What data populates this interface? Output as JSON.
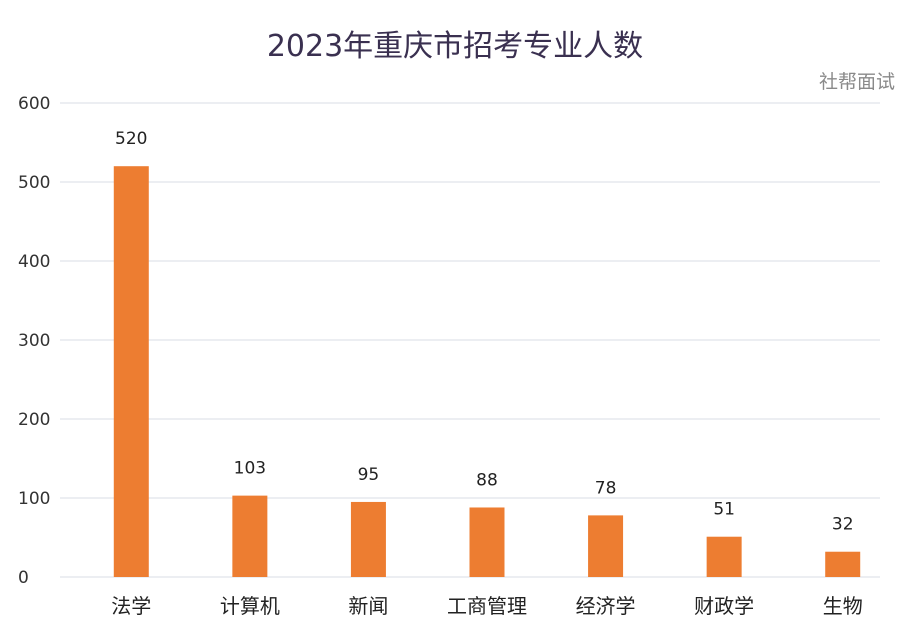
{
  "chart_data": {
    "type": "bar",
    "title": "2023年重庆市招考专业人数",
    "categories": [
      "法学",
      "计算机",
      "新闻",
      "工商管理",
      "经济学",
      "财政学",
      "生物"
    ],
    "values": [
      520,
      103,
      95,
      88,
      78,
      51,
      32
    ],
    "ylim": [
      0,
      600
    ],
    "yticks": [
      0,
      100,
      200,
      300,
      400,
      500,
      600
    ],
    "grid": true,
    "bar_color": "#ed7d31",
    "grid_color": "#d9dce6"
  },
  "watermark": "社帮面试"
}
